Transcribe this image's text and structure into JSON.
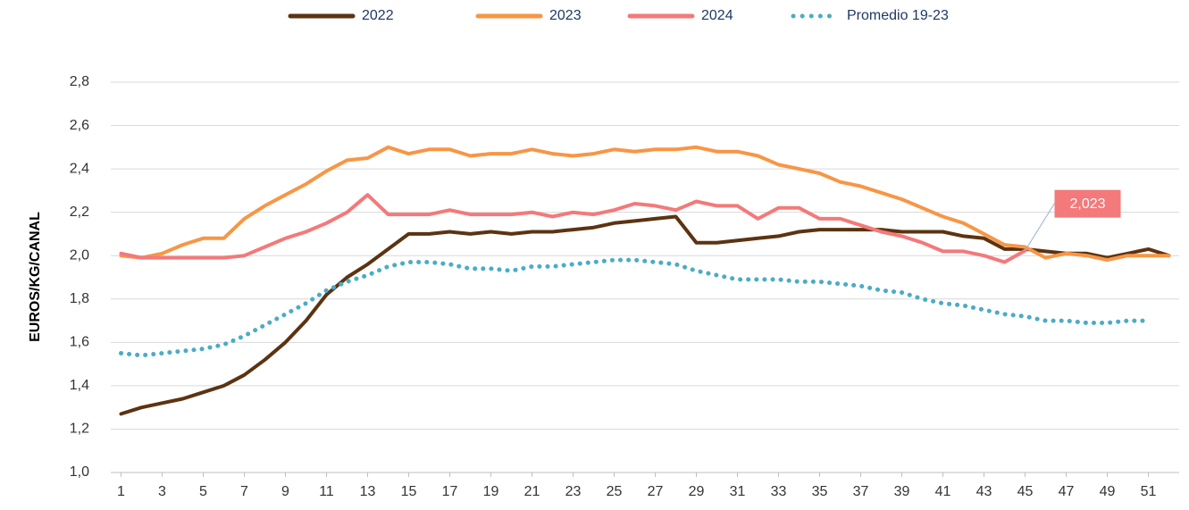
{
  "chart_data": {
    "type": "line",
    "y_label": "EUROS/KG/CANAL",
    "x": [
      1,
      2,
      3,
      4,
      5,
      6,
      7,
      8,
      9,
      10,
      11,
      12,
      13,
      14,
      15,
      16,
      17,
      18,
      19,
      20,
      21,
      22,
      23,
      24,
      25,
      26,
      27,
      28,
      29,
      30,
      31,
      32,
      33,
      34,
      35,
      36,
      37,
      38,
      39,
      40,
      41,
      42,
      43,
      44,
      45,
      46,
      47,
      48,
      49,
      50,
      51,
      52
    ],
    "xlim": [
      0.5,
      52.5
    ],
    "xticks": [
      1,
      3,
      5,
      7,
      9,
      11,
      13,
      15,
      17,
      19,
      21,
      23,
      25,
      27,
      29,
      31,
      33,
      35,
      37,
      39,
      41,
      43,
      45,
      47,
      49,
      51
    ],
    "ylim": [
      1.0,
      2.8
    ],
    "yticks": [
      {
        "value": 1.0,
        "label": "1,0"
      },
      {
        "value": 1.2,
        "label": "1,2"
      },
      {
        "value": 1.4,
        "label": "1,4"
      },
      {
        "value": 1.6,
        "label": "1,6"
      },
      {
        "value": 1.8,
        "label": "1,8"
      },
      {
        "value": 2.0,
        "label": "2,0"
      },
      {
        "value": 2.2,
        "label": "2,2"
      },
      {
        "value": 2.4,
        "label": "2,4"
      },
      {
        "value": 2.6,
        "label": "2,6"
      },
      {
        "value": 2.8,
        "label": "2,8"
      }
    ],
    "grid": true,
    "legend": "top",
    "series": [
      {
        "name": "2022",
        "color": "#5c3311",
        "style": "solid",
        "values": [
          1.27,
          1.3,
          1.32,
          1.34,
          1.37,
          1.4,
          1.45,
          1.52,
          1.6,
          1.7,
          1.82,
          1.9,
          1.96,
          2.03,
          2.1,
          2.1,
          2.11,
          2.1,
          2.11,
          2.1,
          2.11,
          2.11,
          2.12,
          2.13,
          2.15,
          2.16,
          2.17,
          2.18,
          2.06,
          2.06,
          2.07,
          2.08,
          2.09,
          2.11,
          2.12,
          2.12,
          2.12,
          2.12,
          2.11,
          2.11,
          2.11,
          2.09,
          2.08,
          2.03,
          2.03,
          2.02,
          2.01,
          2.01,
          1.99,
          2.01,
          2.03,
          2.0
        ]
      },
      {
        "name": "2023",
        "color": "#f79646",
        "style": "solid",
        "values": [
          2.0,
          1.99,
          2.01,
          2.05,
          2.08,
          2.08,
          2.17,
          2.23,
          2.28,
          2.33,
          2.39,
          2.44,
          2.45,
          2.5,
          2.47,
          2.49,
          2.49,
          2.46,
          2.47,
          2.47,
          2.49,
          2.47,
          2.46,
          2.47,
          2.49,
          2.48,
          2.49,
          2.49,
          2.5,
          2.48,
          2.48,
          2.46,
          2.42,
          2.4,
          2.38,
          2.34,
          2.32,
          2.29,
          2.26,
          2.22,
          2.18,
          2.15,
          2.1,
          2.05,
          2.04,
          1.99,
          2.01,
          2.0,
          1.98,
          2.0,
          2.0,
          2.0
        ]
      },
      {
        "name": "2024",
        "color": "#f4797a",
        "style": "solid",
        "values": [
          2.01,
          1.99,
          1.99,
          1.99,
          1.99,
          1.99,
          2.0,
          2.04,
          2.08,
          2.11,
          2.15,
          2.2,
          2.28,
          2.19,
          2.19,
          2.19,
          2.21,
          2.19,
          2.19,
          2.19,
          2.2,
          2.18,
          2.2,
          2.19,
          2.21,
          2.24,
          2.23,
          2.21,
          2.25,
          2.23,
          2.23,
          2.17,
          2.22,
          2.22,
          2.17,
          2.17,
          2.14,
          2.11,
          2.09,
          2.06,
          2.02,
          2.02,
          2.0,
          1.97,
          2.023,
          null,
          null,
          null,
          null,
          null,
          null,
          null
        ],
        "value_labels": [
          null,
          null,
          null,
          null,
          null,
          null,
          null,
          null,
          null,
          null,
          null,
          null,
          null,
          null,
          null,
          null,
          null,
          null,
          null,
          null,
          null,
          null,
          null,
          null,
          null,
          null,
          null,
          null,
          null,
          null,
          null,
          null,
          null,
          null,
          null,
          null,
          null,
          null,
          null,
          null,
          null,
          null,
          null,
          null,
          "2,023",
          null,
          null,
          null,
          null,
          null,
          null,
          null
        ]
      },
      {
        "name": "Promedio 19-23",
        "color": "#4bacc6",
        "style": "dotted",
        "values": [
          1.55,
          1.54,
          1.55,
          1.56,
          1.57,
          1.59,
          1.63,
          1.68,
          1.73,
          1.78,
          1.84,
          1.88,
          1.91,
          1.95,
          1.97,
          1.97,
          1.96,
          1.94,
          1.94,
          1.93,
          1.95,
          1.95,
          1.96,
          1.97,
          1.98,
          1.98,
          1.97,
          1.96,
          1.93,
          1.91,
          1.89,
          1.89,
          1.89,
          1.88,
          1.88,
          1.87,
          1.86,
          1.84,
          1.83,
          1.8,
          1.78,
          1.77,
          1.75,
          1.73,
          1.72,
          1.7,
          1.7,
          1.69,
          1.69,
          1.7,
          1.7,
          null
        ]
      }
    ]
  }
}
